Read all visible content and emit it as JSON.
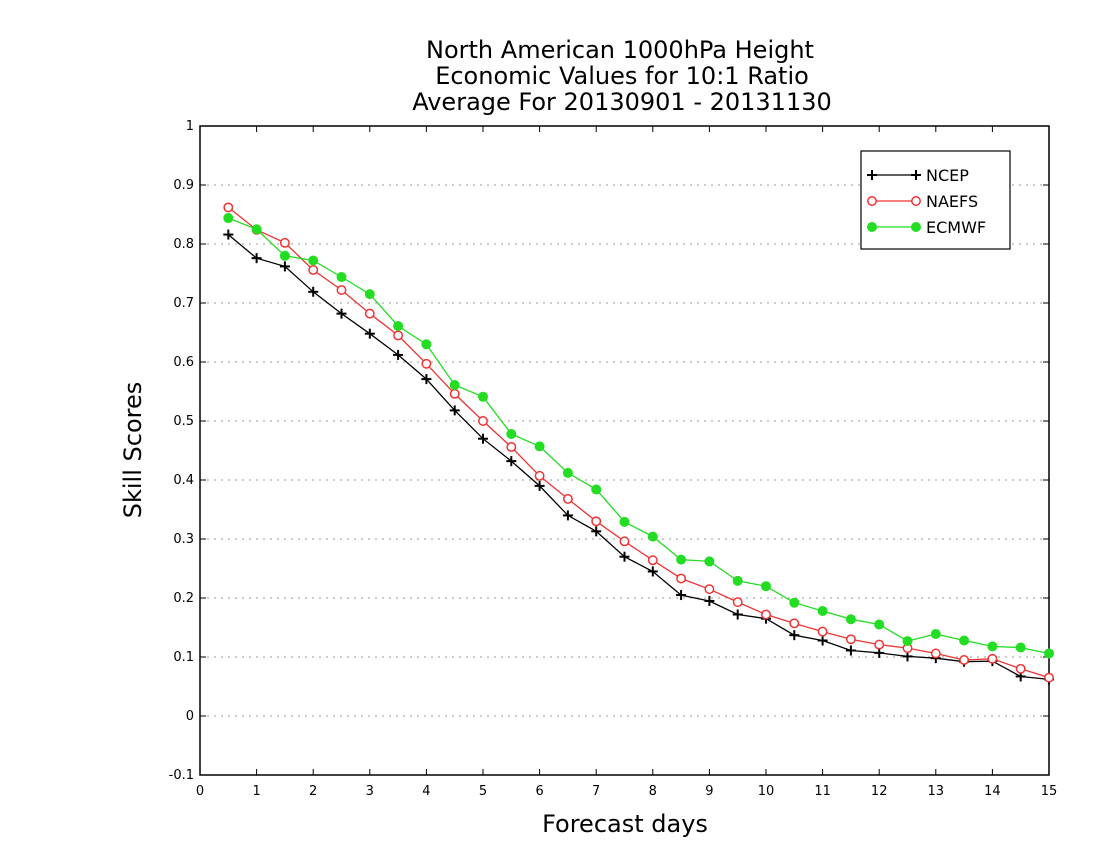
{
  "chart_data": {
    "type": "line",
    "title_lines": [
      "North American 1000hPa Height",
      "Economic Values for 10:1 Ratio",
      "Average For 20130901 - 20131130"
    ],
    "xlabel": "Forecast days",
    "ylabel": "Skill Scores",
    "xlim": [
      0,
      15
    ],
    "ylim": [
      -0.1,
      1
    ],
    "x_ticks": [
      0,
      1,
      2,
      3,
      4,
      5,
      6,
      7,
      8,
      9,
      10,
      11,
      12,
      13,
      14,
      15
    ],
    "y_ticks": [
      -0.1,
      0,
      0.1,
      0.2,
      0.3,
      0.4,
      0.5,
      0.6,
      0.7,
      0.8,
      0.9,
      1
    ],
    "y_tick_labels": [
      "-0.1",
      "0",
      "0.1",
      "0.2",
      "0.3",
      "0.4",
      "0.5",
      "0.6",
      "0.7",
      "0.8",
      "0.9",
      "1"
    ],
    "grid": "horizontal dotted",
    "legend_position": "top-right",
    "x": [
      0.5,
      1,
      1.5,
      2,
      2.5,
      3,
      3.5,
      4,
      4.5,
      5,
      5.5,
      6,
      6.5,
      7,
      7.5,
      8,
      8.5,
      9,
      9.5,
      10,
      10.5,
      11,
      11.5,
      12,
      12.5,
      13,
      13.5,
      14,
      14.5,
      15
    ],
    "series": [
      {
        "name": "NCEP",
        "color": "#000000",
        "marker": "plus",
        "values": [
          0.816,
          0.776,
          0.762,
          0.719,
          0.682,
          0.648,
          0.612,
          0.571,
          0.518,
          0.47,
          0.432,
          0.39,
          0.34,
          0.313,
          0.27,
          0.245,
          0.205,
          0.195,
          0.172,
          0.165,
          0.137,
          0.128,
          0.111,
          0.107,
          0.101,
          0.098,
          0.092,
          0.093,
          0.067,
          0.062
        ]
      },
      {
        "name": "NAEFS",
        "color": "#ee3333",
        "marker": "open-circle",
        "values": [
          0.862,
          0.824,
          0.802,
          0.756,
          0.722,
          0.682,
          0.645,
          0.597,
          0.546,
          0.5,
          0.456,
          0.407,
          0.368,
          0.33,
          0.296,
          0.264,
          0.233,
          0.215,
          0.193,
          0.172,
          0.157,
          0.143,
          0.13,
          0.121,
          0.115,
          0.106,
          0.095,
          0.097,
          0.08,
          0.065
        ]
      },
      {
        "name": "ECMWF",
        "color": "#22dd22",
        "marker": "filled-circle",
        "values": [
          0.844,
          0.825,
          0.78,
          0.772,
          0.744,
          0.715,
          0.661,
          0.63,
          0.561,
          0.541,
          0.478,
          0.457,
          0.412,
          0.384,
          0.329,
          0.304,
          0.265,
          0.262,
          0.229,
          0.22,
          0.192,
          0.178,
          0.164,
          0.155,
          0.127,
          0.139,
          0.128,
          0.118,
          0.116,
          0.106
        ]
      }
    ]
  }
}
